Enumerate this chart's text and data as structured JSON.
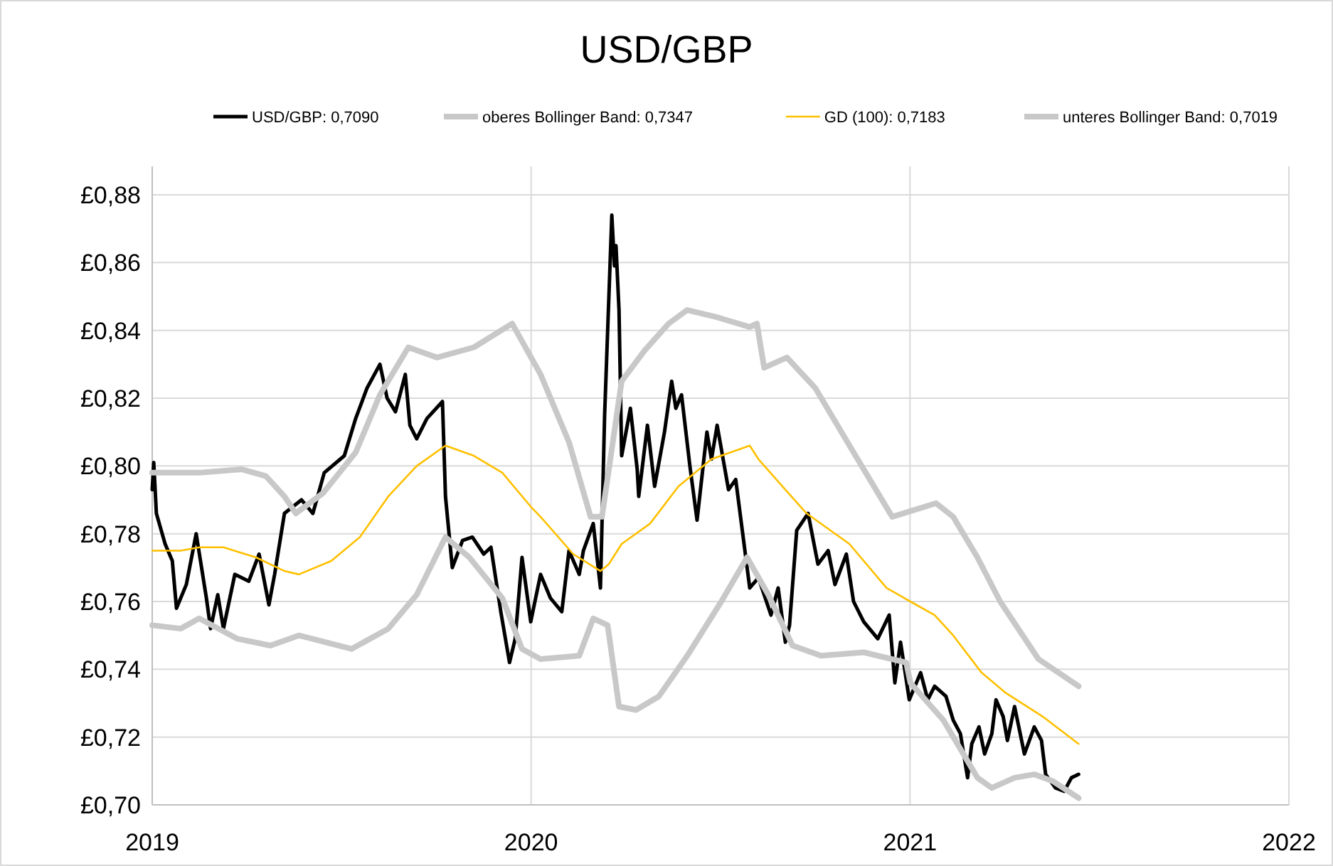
{
  "chart_data": {
    "type": "line",
    "title": "USD/GBP",
    "legend": "top",
    "grid": true,
    "xlim": [
      2019,
      2022
    ],
    "xticks": [
      2019,
      2020,
      2021,
      2022
    ],
    "ylim": [
      0.7,
      0.88
    ],
    "yticks": [
      {
        "value": 0.7,
        "label": "£0,70"
      },
      {
        "value": 0.72,
        "label": "£0,72"
      },
      {
        "value": 0.74,
        "label": "£0,74"
      },
      {
        "value": 0.76,
        "label": "£0,76"
      },
      {
        "value": 0.78,
        "label": "£0,78"
      },
      {
        "value": 0.8,
        "label": "£0,80"
      },
      {
        "value": 0.82,
        "label": "£0,82"
      },
      {
        "value": 0.84,
        "label": "£0,84"
      },
      {
        "value": 0.86,
        "label": "£0,86"
      },
      {
        "value": 0.88,
        "label": "£0,88"
      }
    ],
    "series": [
      {
        "name": "USD/GBP: 0,7090",
        "color": "#000000",
        "x": [
          2019.0,
          2019.004,
          2019.011,
          2019.034,
          2019.053,
          2019.064,
          2019.09,
          2019.116,
          2019.143,
          2019.154,
          2019.173,
          2019.188,
          2019.218,
          2019.255,
          2019.282,
          2019.308,
          2019.323,
          2019.349,
          2019.394,
          2019.424,
          2019.454,
          2019.507,
          2019.537,
          2019.567,
          2019.601,
          2019.62,
          2019.642,
          2019.668,
          2019.68,
          2019.698,
          2019.725,
          2019.766,
          2019.774,
          2019.792,
          2019.819,
          2019.845,
          2019.875,
          2019.894,
          2019.92,
          2019.943,
          2019.958,
          2019.976,
          2019.999,
          2020.025,
          2020.051,
          2020.081,
          2020.1,
          2020.127,
          2020.138,
          2020.164,
          2020.183,
          2020.194,
          2020.213,
          2020.22,
          2020.224,
          2020.232,
          2020.239,
          2020.262,
          2020.28,
          2020.284,
          2020.307,
          2020.326,
          2020.352,
          2020.371,
          2020.382,
          2020.397,
          2020.419,
          2020.438,
          2020.464,
          2020.476,
          2020.491,
          2020.521,
          2020.54,
          2020.577,
          2020.6,
          2020.633,
          2020.652,
          2020.671,
          2020.682,
          2020.701,
          2020.731,
          2020.757,
          2020.784,
          2020.802,
          2020.832,
          2020.851,
          2020.878,
          2020.915,
          2020.945,
          2020.96,
          2020.975,
          2020.998,
          2021.028,
          2021.047,
          2021.065,
          2021.095,
          2021.114,
          2021.133,
          2021.152,
          2021.163,
          2021.182,
          2021.197,
          2021.216,
          2021.227,
          2021.246,
          2021.257,
          2021.276,
          2021.302,
          2021.328,
          2021.347,
          2021.358,
          2021.384,
          2021.407,
          2021.426,
          2021.445
        ],
        "values": [
          0.793,
          0.801,
          0.786,
          0.777,
          0.772,
          0.758,
          0.765,
          0.78,
          0.761,
          0.752,
          0.762,
          0.752,
          0.768,
          0.766,
          0.774,
          0.759,
          0.768,
          0.786,
          0.79,
          0.786,
          0.798,
          0.803,
          0.814,
          0.823,
          0.83,
          0.82,
          0.816,
          0.827,
          0.812,
          0.808,
          0.814,
          0.819,
          0.791,
          0.77,
          0.778,
          0.779,
          0.774,
          0.776,
          0.757,
          0.742,
          0.749,
          0.773,
          0.754,
          0.768,
          0.761,
          0.757,
          0.775,
          0.768,
          0.775,
          0.783,
          0.764,
          0.815,
          0.874,
          0.859,
          0.865,
          0.846,
          0.803,
          0.817,
          0.799,
          0.791,
          0.812,
          0.794,
          0.81,
          0.825,
          0.817,
          0.821,
          0.8,
          0.784,
          0.81,
          0.802,
          0.812,
          0.793,
          0.796,
          0.764,
          0.767,
          0.756,
          0.764,
          0.748,
          0.753,
          0.781,
          0.786,
          0.771,
          0.775,
          0.765,
          0.774,
          0.76,
          0.754,
          0.749,
          0.756,
          0.736,
          0.748,
          0.731,
          0.739,
          0.731,
          0.735,
          0.732,
          0.725,
          0.721,
          0.708,
          0.718,
          0.723,
          0.715,
          0.721,
          0.731,
          0.726,
          0.719,
          0.729,
          0.715,
          0.723,
          0.719,
          0.709,
          0.705,
          0.704,
          0.708,
          0.709
        ]
      },
      {
        "name": "oberes Bollinger Band: 0,7347",
        "color": "#c8c8c8",
        "x": [
          2019.0,
          2019.124,
          2019.237,
          2019.3,
          2019.349,
          2019.379,
          2019.451,
          2019.537,
          2019.601,
          2019.676,
          2019.751,
          2019.849,
          2019.95,
          2020.025,
          2020.1,
          2020.157,
          2020.187,
          2020.239,
          2020.299,
          2020.363,
          2020.412,
          2020.487,
          2020.577,
          2020.596,
          2020.615,
          2020.675,
          2020.75,
          2020.851,
          2020.953,
          2021.069,
          2021.114,
          2021.178,
          2021.238,
          2021.339,
          2021.445
        ],
        "values": [
          0.798,
          0.798,
          0.799,
          0.797,
          0.791,
          0.786,
          0.792,
          0.804,
          0.821,
          0.835,
          0.832,
          0.835,
          0.842,
          0.827,
          0.807,
          0.785,
          0.785,
          0.825,
          0.834,
          0.842,
          0.846,
          0.844,
          0.841,
          0.842,
          0.829,
          0.832,
          0.823,
          0.804,
          0.785,
          0.789,
          0.785,
          0.773,
          0.76,
          0.743,
          0.735
        ]
      },
      {
        "name": "GD (100): 0,7183",
        "color": "#ffc000",
        "x": [
          2019.0,
          2019.075,
          2019.124,
          2019.188,
          2019.274,
          2019.349,
          2019.387,
          2019.473,
          2019.548,
          2019.623,
          2019.698,
          2019.774,
          2019.849,
          2019.924,
          2019.999,
          2020.025,
          2020.111,
          2020.183,
          2020.205,
          2020.239,
          2020.314,
          2020.389,
          2020.476,
          2020.577,
          2020.6,
          2020.663,
          2020.727,
          2020.84,
          2020.938,
          2021.001,
          2021.065,
          2021.114,
          2021.189,
          2021.253,
          2021.351,
          2021.445
        ],
        "values": [
          0.775,
          0.775,
          0.776,
          0.776,
          0.773,
          0.769,
          0.768,
          0.772,
          0.779,
          0.791,
          0.8,
          0.806,
          0.803,
          0.798,
          0.788,
          0.785,
          0.774,
          0.769,
          0.771,
          0.777,
          0.783,
          0.794,
          0.802,
          0.806,
          0.802,
          0.794,
          0.786,
          0.777,
          0.764,
          0.76,
          0.756,
          0.75,
          0.739,
          0.733,
          0.726,
          0.718
        ]
      },
      {
        "name": "unteres Bollinger Band: 0,7019",
        "color": "#c8c8c8",
        "x": [
          2019.0,
          2019.075,
          2019.124,
          2019.225,
          2019.312,
          2019.387,
          2019.526,
          2019.623,
          2019.698,
          2019.774,
          2019.837,
          2019.924,
          2019.976,
          2020.025,
          2020.127,
          2020.164,
          2020.202,
          2020.232,
          2020.277,
          2020.337,
          2020.412,
          2020.502,
          2020.57,
          2020.626,
          2020.69,
          2020.765,
          2020.878,
          2020.99,
          2021.001,
          2021.088,
          2021.178,
          2021.216,
          2021.276,
          2021.328,
          2021.377,
          2021.445
        ],
        "values": [
          0.753,
          0.752,
          0.755,
          0.749,
          0.747,
          0.75,
          0.746,
          0.752,
          0.762,
          0.779,
          0.773,
          0.761,
          0.746,
          0.743,
          0.744,
          0.755,
          0.753,
          0.729,
          0.728,
          0.732,
          0.744,
          0.76,
          0.773,
          0.762,
          0.747,
          0.744,
          0.745,
          0.742,
          0.736,
          0.725,
          0.708,
          0.705,
          0.708,
          0.709,
          0.707,
          0.702
        ]
      }
    ]
  }
}
